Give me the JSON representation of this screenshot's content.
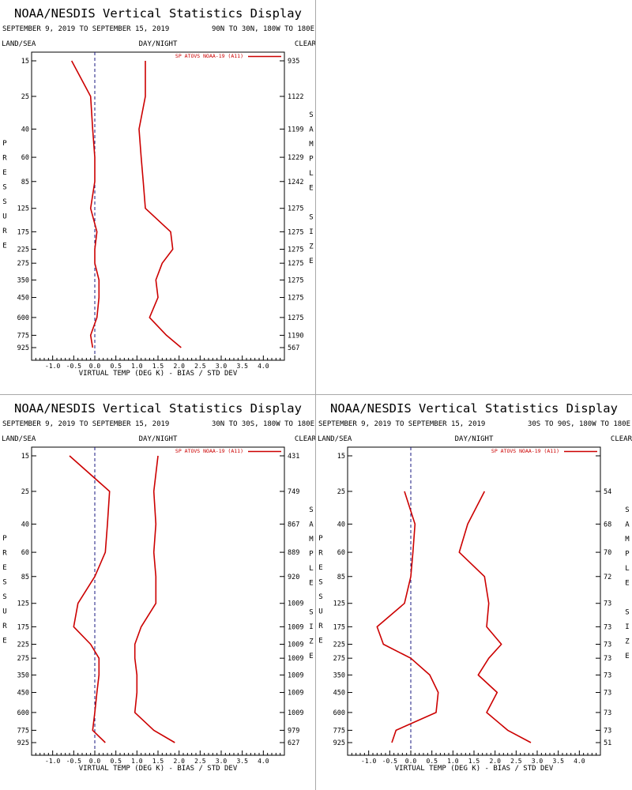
{
  "display_title": "NOAA/NESDIS Vertical Statistics Display",
  "date_range": "SEPTEMBER 9, 2019 TO SEPTEMBER 15, 2019",
  "corner_labels": {
    "left": "LAND/SEA",
    "center": "DAY/NIGHT",
    "right": "CLEAR"
  },
  "legend_label": "SP ATOVS NOAA-19 (A11)",
  "y_axis_title": "PRESSURE",
  "sample_axis_title": "SAMPLE SIZE",
  "x_axis_title": "VIRTUAL TEMP (DEG K) - BIAS / STD DEV",
  "colors": {
    "series": "#cc0000",
    "zero_line": "#1a1a80",
    "divider": "#a8a8a8"
  },
  "chart_data": [
    {
      "type": "line",
      "region": "90N TO 30N, 180W TO 180E",
      "y_scale": "log",
      "ylim": [
        15,
        925
      ],
      "xlim": [
        -1.5,
        4.5
      ],
      "x_ticks": [
        "-1.0",
        "-0.5",
        "0.0",
        "0.5",
        "1.0",
        "1.5",
        "2.0",
        "2.5",
        "3.0",
        "3.5",
        "4.0"
      ],
      "pressure_levels": [
        15,
        25,
        40,
        60,
        85,
        125,
        175,
        225,
        275,
        350,
        450,
        600,
        775,
        925
      ],
      "sample_size": [
        "935",
        "1122",
        "1199",
        "1229",
        "1242",
        "1275",
        "1275",
        "1275",
        "1275",
        "1275",
        "1275",
        "1275",
        "1190",
        "567"
      ],
      "series": [
        {
          "name": "bias",
          "values": [
            -0.55,
            -0.1,
            -0.05,
            0.0,
            0.0,
            -0.1,
            0.05,
            0.0,
            0.0,
            0.1,
            0.1,
            0.05,
            -0.1,
            -0.05
          ]
        },
        {
          "name": "std_dev",
          "values": [
            1.2,
            1.2,
            1.05,
            1.1,
            1.15,
            1.2,
            1.8,
            1.85,
            1.6,
            1.45,
            1.5,
            1.3,
            1.7,
            2.05
          ]
        }
      ]
    },
    {
      "type": "line",
      "region": "30N TO 30S, 180W TO 180E",
      "y_scale": "log",
      "ylim": [
        15,
        925
      ],
      "xlim": [
        -1.5,
        4.5
      ],
      "x_ticks": [
        "-1.0",
        "-0.5",
        "0.0",
        "0.5",
        "1.0",
        "1.5",
        "2.0",
        "2.5",
        "3.0",
        "3.5",
        "4.0"
      ],
      "pressure_levels": [
        15,
        25,
        40,
        60,
        85,
        125,
        175,
        225,
        275,
        350,
        450,
        600,
        775,
        925
      ],
      "sample_size": [
        "431",
        "749",
        "867",
        "889",
        "920",
        "1009",
        "1009",
        "1009",
        "1009",
        "1009",
        "1009",
        "1009",
        "979",
        "627"
      ],
      "series": [
        {
          "name": "bias",
          "values": [
            -0.6,
            0.35,
            0.3,
            0.25,
            0.0,
            -0.4,
            -0.5,
            -0.1,
            0.1,
            0.1,
            0.05,
            0.0,
            -0.05,
            0.25
          ]
        },
        {
          "name": "std_dev",
          "values": [
            1.5,
            1.4,
            1.45,
            1.4,
            1.45,
            1.45,
            1.1,
            0.95,
            0.95,
            1.0,
            1.0,
            0.95,
            1.4,
            1.9
          ]
        }
      ]
    },
    {
      "type": "line",
      "region": "30S TO 90S, 180W TO 180E",
      "y_scale": "log",
      "ylim": [
        15,
        925
      ],
      "xlim": [
        -1.5,
        4.5
      ],
      "x_ticks": [
        "-1.0",
        "-0.5",
        "0.0",
        "0.5",
        "1.0",
        "1.5",
        "2.0",
        "2.5",
        "3.0",
        "3.5",
        "4.0"
      ],
      "pressure_levels": [
        15,
        25,
        40,
        60,
        85,
        125,
        175,
        225,
        275,
        350,
        450,
        600,
        775,
        925
      ],
      "sample_size": [
        "",
        "54",
        "68",
        "70",
        "72",
        "73",
        "73",
        "73",
        "73",
        "73",
        "73",
        "73",
        "73",
        "51"
      ],
      "series": [
        {
          "name": "bias",
          "values": [
            null,
            -0.15,
            0.1,
            0.05,
            0.0,
            -0.15,
            -0.8,
            -0.65,
            0.0,
            0.45,
            0.65,
            0.6,
            -0.35,
            -0.45
          ]
        },
        {
          "name": "std_dev",
          "values": [
            null,
            1.75,
            1.35,
            1.15,
            1.75,
            1.85,
            1.8,
            2.15,
            1.85,
            1.6,
            2.05,
            1.8,
            2.3,
            2.85
          ]
        }
      ]
    }
  ]
}
